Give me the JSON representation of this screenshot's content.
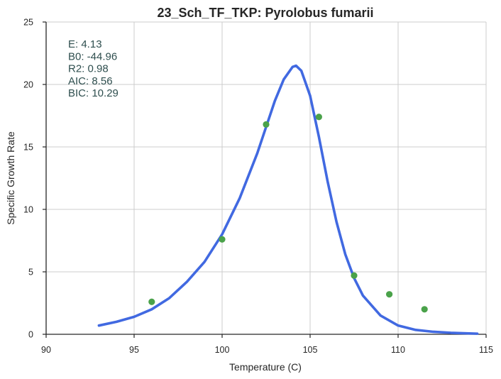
{
  "chart_data": {
    "type": "scatter",
    "title": "23_Sch_TF_TKP: Pyrolobus fumarii",
    "xlabel": "Temperature (C)",
    "ylabel": "Specific Growth Rate",
    "xlim": [
      90,
      115
    ],
    "ylim": [
      0,
      25
    ],
    "xticks": [
      90,
      95,
      100,
      105,
      110,
      115
    ],
    "yticks": [
      0,
      5,
      10,
      15,
      20,
      25
    ],
    "grid": true,
    "colors": {
      "fit": "#4169e1",
      "points": "#4aa24a",
      "stats": "#2f4f4f"
    },
    "series": [
      {
        "type": "scatter",
        "x": [
          96.0,
          100.0,
          102.5,
          105.5,
          107.5,
          109.5,
          111.5
        ],
        "y": [
          2.6,
          7.6,
          16.8,
          17.4,
          4.7,
          3.2,
          2.0
        ]
      },
      {
        "type": "line",
        "x": [
          93.0,
          94.0,
          95.0,
          96.0,
          97.0,
          98.0,
          99.0,
          100.0,
          101.0,
          102.0,
          102.5,
          103.0,
          103.5,
          104.0,
          104.2,
          104.5,
          105.0,
          105.5,
          106.0,
          106.5,
          107.0,
          107.5,
          108.0,
          109.0,
          110.0,
          111.0,
          112.0,
          113.0,
          114.5
        ],
        "y": [
          0.7,
          1.0,
          1.4,
          2.0,
          2.9,
          4.2,
          5.8,
          8.0,
          10.9,
          14.5,
          16.6,
          18.7,
          20.4,
          21.4,
          21.5,
          21.1,
          19.1,
          15.8,
          12.2,
          9.0,
          6.4,
          4.5,
          3.1,
          1.5,
          0.7,
          0.35,
          0.2,
          0.12,
          0.05
        ]
      }
    ],
    "annotations": [
      {
        "label": "E:",
        "value": "4.13"
      },
      {
        "label": "B0:",
        "value": "-44.96"
      },
      {
        "label": "R2:",
        "value": "0.98"
      },
      {
        "label": "AIC:",
        "value": "8.56"
      },
      {
        "label": "BIC:",
        "value": "10.29"
      }
    ]
  }
}
